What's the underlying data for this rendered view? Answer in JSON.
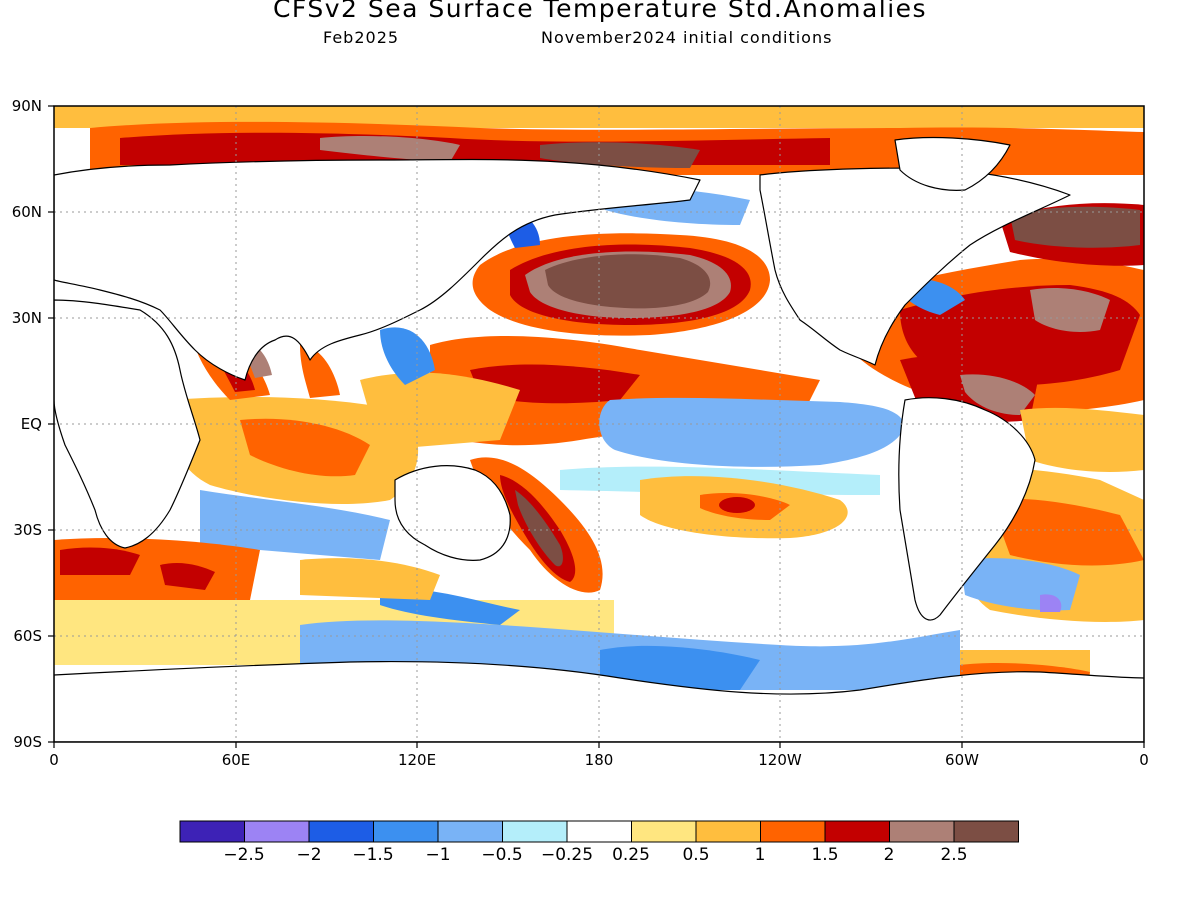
{
  "header": {
    "title": "CFSv2 Sea Surface Temperature Std.Anomalies",
    "subtitle_left": "Feb2025",
    "subtitle_right": "November2024 initial conditions"
  },
  "axes": {
    "y_ticks": [
      "90N",
      "60N",
      "30N",
      "EQ",
      "30S",
      "60S",
      "90S"
    ],
    "x_ticks": [
      "0",
      "60E",
      "120E",
      "180",
      "120W",
      "60W",
      "0"
    ]
  },
  "colorbar": {
    "colors": [
      "#3d22b6",
      "#9c83f4",
      "#1d5de6",
      "#3c90f0",
      "#79b3f6",
      "#b4eefa",
      "#ffffff",
      "#ffe680",
      "#ffbe3e",
      "#ff6300",
      "#c30000",
      "#ad8076",
      "#7c4e44"
    ],
    "labels": [
      "−2.5",
      "−2",
      "−1.5",
      "−1",
      "−0.5",
      "−0.25",
      "0.25",
      "0.5",
      "1",
      "1.5",
      "2",
      "2.5"
    ]
  }
}
